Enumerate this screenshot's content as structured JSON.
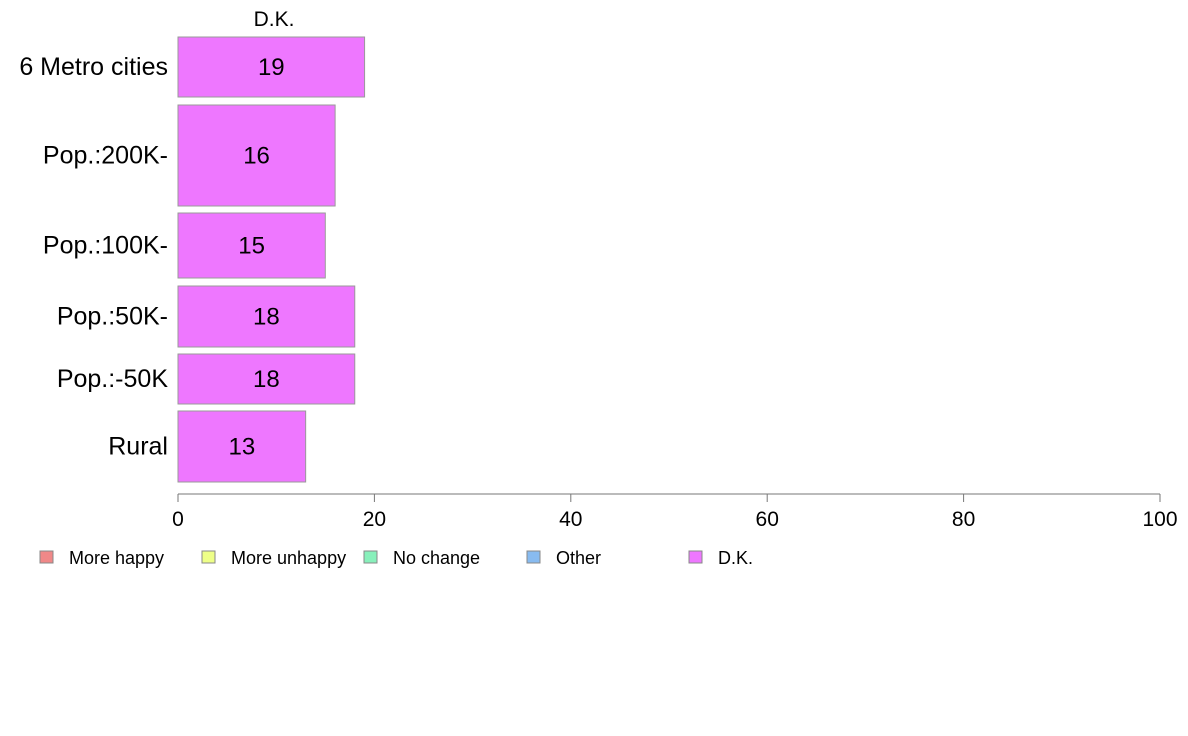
{
  "chart_data": {
    "type": "bar",
    "orientation": "horizontal",
    "title": "D.K.",
    "categories": [
      "6 Metro cities",
      "Pop.:200K-",
      "Pop.:100K-",
      "Pop.:50K-",
      "Pop.:-50K",
      "Rural"
    ],
    "series": [
      {
        "name": "D.K.",
        "values": [
          19,
          16,
          15,
          18,
          18,
          13
        ],
        "color": "#ee77ff"
      }
    ],
    "xlim": [
      0,
      100
    ],
    "xticks": [
      0,
      20,
      40,
      60,
      80,
      100
    ],
    "xlabel": "",
    "ylabel": "",
    "grid": false,
    "legend_position": "bottom-left",
    "legend": [
      {
        "label": "More happy",
        "color": "#f08888"
      },
      {
        "label": "More unhappy",
        "color": "#eeff88"
      },
      {
        "label": "No change",
        "color": "#88f0bb"
      },
      {
        "label": "Other",
        "color": "#88bbf0"
      },
      {
        "label": "D.K.",
        "color": "#ee77ff"
      }
    ]
  }
}
